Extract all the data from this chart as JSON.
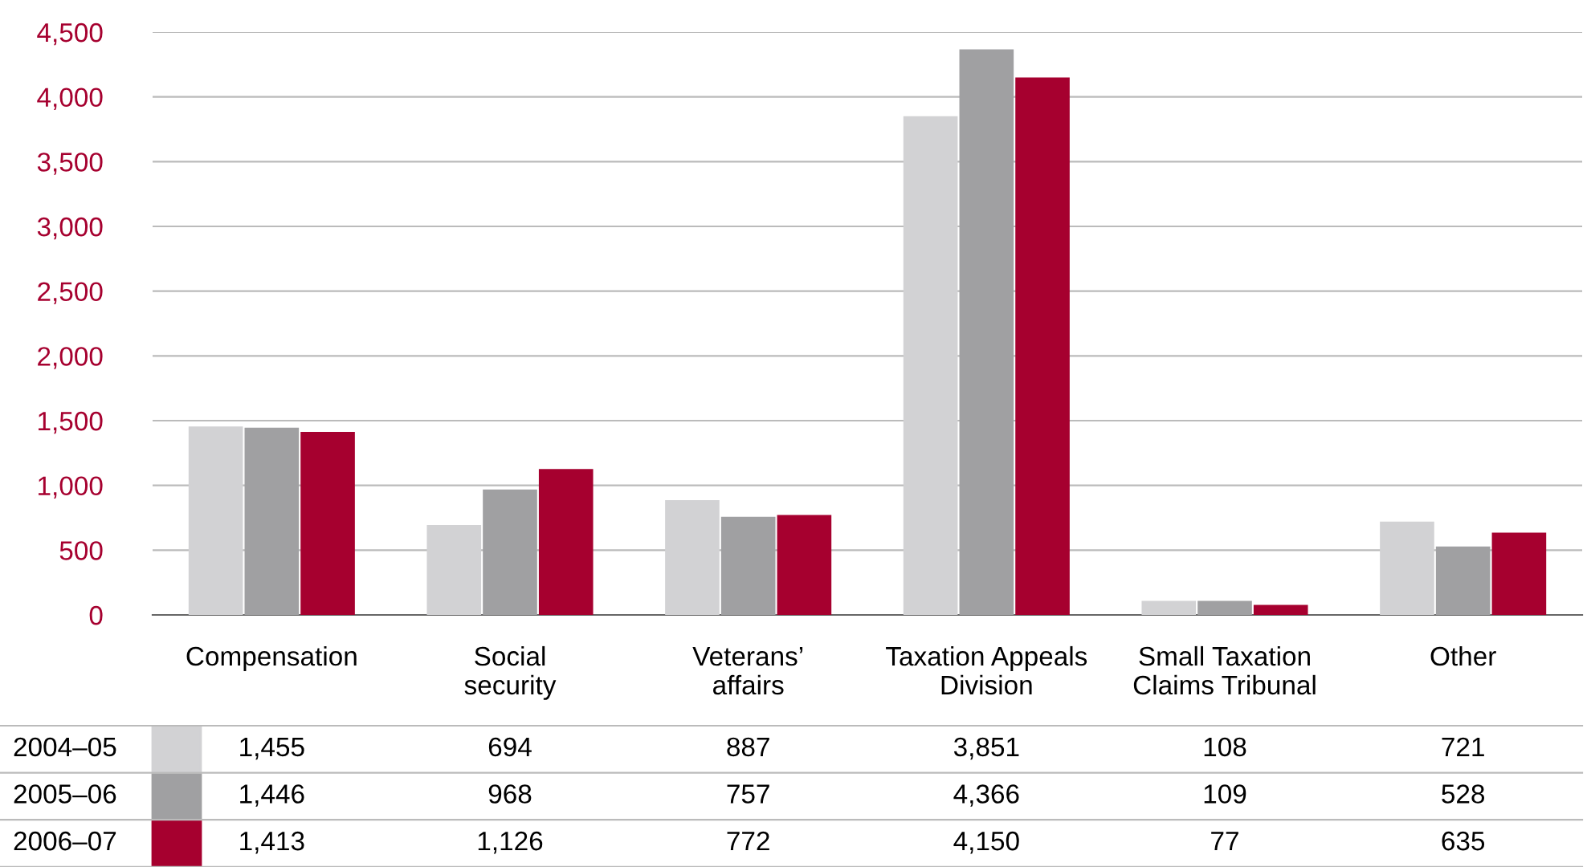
{
  "chart_data": {
    "type": "bar",
    "categories": [
      "Compensation",
      "Social\nsecurity",
      "Veterans’\naffairs",
      "Taxation Appeals\nDivision",
      "Small Taxation\nClaims Tribunal",
      "Other"
    ],
    "series": [
      {
        "name": "2004–05",
        "color": "#d2d2d4",
        "values": [
          1455,
          694,
          887,
          3851,
          108,
          721
        ],
        "value_labels": [
          "1,455",
          "694",
          "887",
          "3,851",
          "108",
          "721"
        ]
      },
      {
        "name": "2005–06",
        "color": "#a0a0a2",
        "values": [
          1446,
          968,
          757,
          4366,
          109,
          528
        ],
        "value_labels": [
          "1,446",
          "968",
          "757",
          "4,366",
          "109",
          "528"
        ]
      },
      {
        "name": "2006–07",
        "color": "#a6002f",
        "values": [
          1413,
          1126,
          772,
          4150,
          77,
          635
        ],
        "value_labels": [
          "1,413",
          "1,126",
          "772",
          "4,150",
          "77",
          "635"
        ]
      }
    ],
    "ylim": [
      0,
      4500
    ],
    "yticks": [
      0,
      500,
      {
        "value": 1000,
        "label": "1,000"
      },
      {
        "value": 1500,
        "label": "1,500"
      },
      {
        "value": 2000,
        "label": "2,000"
      },
      {
        "value": 2500,
        "label": "2,500"
      },
      {
        "value": 3000,
        "label": "3,000"
      },
      {
        "value": 3500,
        "label": "3,500"
      },
      {
        "value": 4000,
        "label": "4,000"
      },
      {
        "value": 4500,
        "label": "4,500"
      }
    ],
    "grid": "y",
    "legend": "bottom"
  }
}
